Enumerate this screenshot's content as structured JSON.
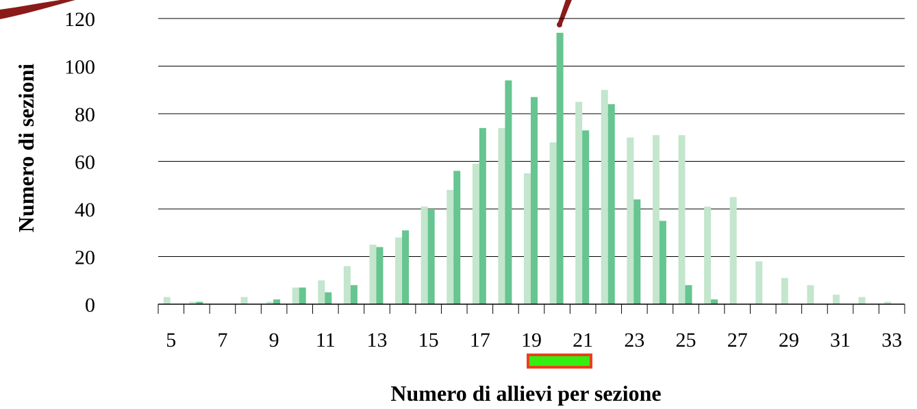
{
  "chart_data": {
    "type": "bar",
    "title": "",
    "xlabel": "Numero di allievi per sezione",
    "ylabel": "Numero di sezioni",
    "ylim": [
      0,
      120
    ],
    "yticks": [
      "0",
      "20",
      "40",
      "60",
      "80",
      "100",
      "120"
    ],
    "xtick_labels": [
      "5",
      "7",
      "9",
      "11",
      "13",
      "15",
      "17",
      "19",
      "21",
      "23",
      "25",
      "27",
      "29",
      "31",
      "33"
    ],
    "categories": [
      5,
      6,
      7,
      8,
      9,
      10,
      11,
      12,
      13,
      14,
      15,
      16,
      17,
      18,
      19,
      20,
      21,
      22,
      23,
      24,
      25,
      26,
      27,
      28,
      29,
      30,
      31,
      32,
      33
    ],
    "series": [
      {
        "color": "#c3e6cd",
        "values": [
          3,
          1,
          0,
          3,
          1,
          7,
          10,
          16,
          25,
          28,
          41,
          48,
          59,
          74,
          55,
          68,
          85,
          90,
          70,
          71,
          71,
          41,
          45,
          18,
          11,
          8,
          4,
          3,
          1
        ]
      },
      {
        "color": "#66c590",
        "values": [
          0,
          1,
          0,
          0,
          2,
          7,
          5,
          8,
          24,
          31,
          40,
          56,
          74,
          94,
          87,
          114,
          73,
          84,
          44,
          35,
          8,
          2,
          0,
          0,
          0,
          0,
          0,
          0,
          0
        ]
      }
    ],
    "grid": true,
    "legend": "none"
  },
  "decorations": {
    "arrow_color": "#8b1a1a",
    "marker_fill": "#33ee11",
    "marker_border": "#e8401c"
  }
}
